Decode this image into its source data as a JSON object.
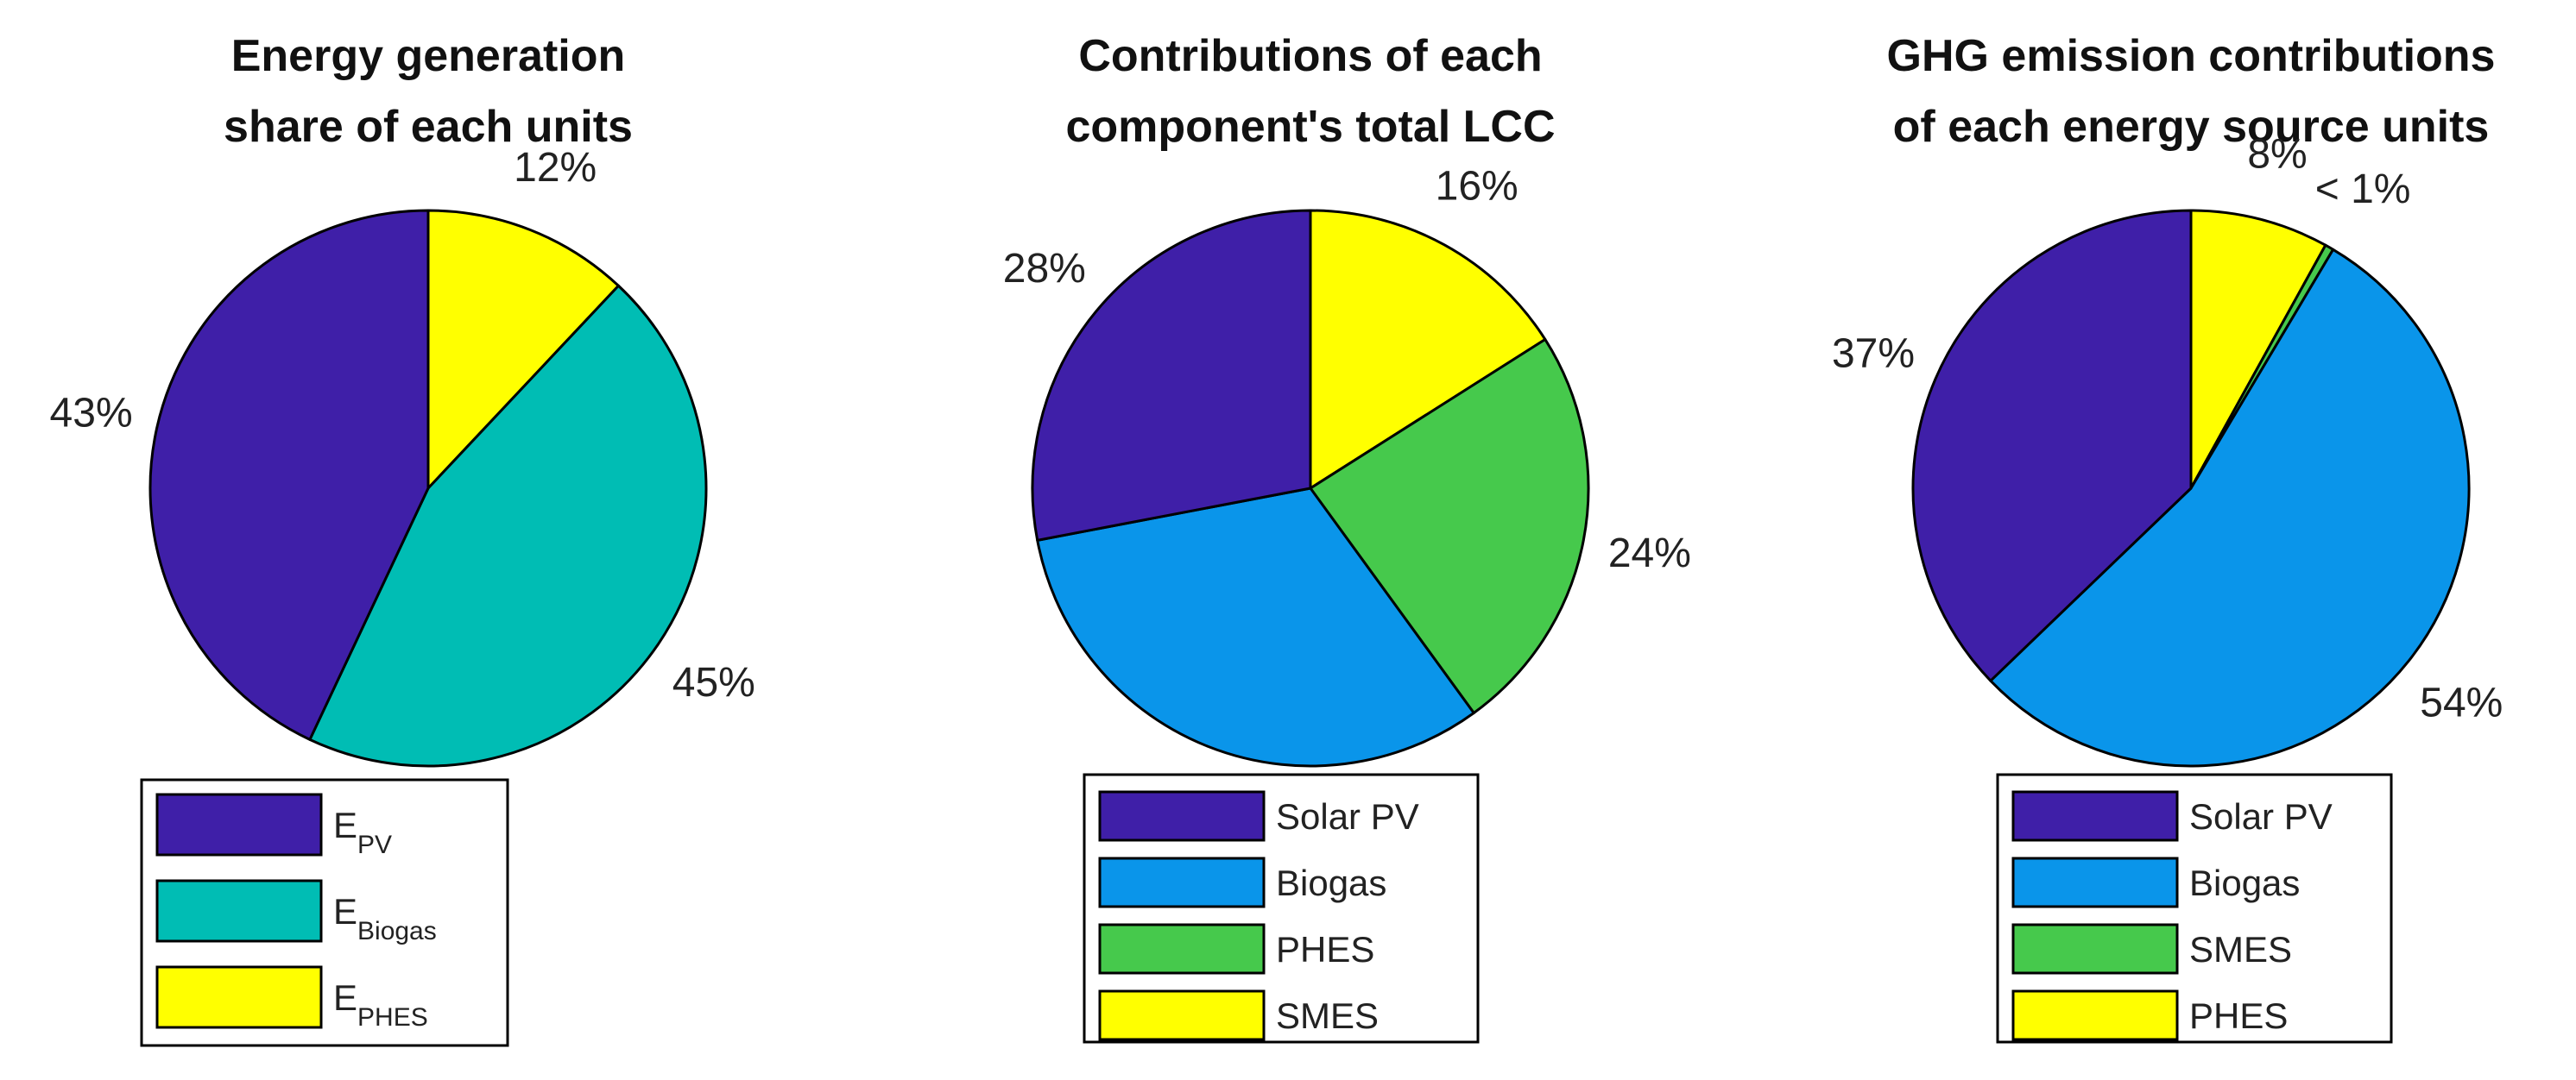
{
  "chart_data": [
    {
      "type": "pie",
      "title": [
        "Energy generation",
        "share of each units"
      ],
      "slices": [
        {
          "label": "E",
          "label_subscript": "PV",
          "value": 43,
          "display": "43%",
          "color": "#3f1fa8"
        },
        {
          "label": "E",
          "label_subscript": "Biogas",
          "value": 45,
          "display": "45%",
          "color": "#00bdb4"
        },
        {
          "label": "E",
          "label_subscript": "PHES",
          "value": 12,
          "display": "12%",
          "color": "#ffff00"
        }
      ],
      "slice_order": [
        2,
        1,
        0
      ],
      "legend": "bottom"
    },
    {
      "type": "pie",
      "title": [
        "Contributions of each",
        "component's total LCC"
      ],
      "slices": [
        {
          "label": "Solar PV",
          "value": 28,
          "display": "28%",
          "color": "#3f1fa8"
        },
        {
          "label": "Biogas",
          "value": 32,
          "display": "32%",
          "color": "#0a95ea"
        },
        {
          "label": "PHES",
          "value": 24,
          "display": "24%",
          "color": "#46c94c"
        },
        {
          "label": "SMES",
          "value": 16,
          "display": "16%",
          "color": "#ffff00"
        }
      ],
      "slice_order": [
        3,
        2,
        1,
        0
      ],
      "legend": "bottom"
    },
    {
      "type": "pie",
      "title": [
        "GHG emission contributions",
        "of each energy source units"
      ],
      "slices": [
        {
          "label": "Solar PV",
          "value": 37,
          "display": "37%",
          "color": "#3f1fa8"
        },
        {
          "label": "Biogas",
          "value": 54,
          "display": "54%",
          "color": "#0a95ea"
        },
        {
          "label": "SMES",
          "value": 0.5,
          "display": "< 1%",
          "color": "#46c94c"
        },
        {
          "label": "PHES",
          "value": 8,
          "display": "8%",
          "color": "#ffff00"
        }
      ],
      "slice_order": [
        3,
        2,
        1,
        0
      ],
      "legend": "bottom"
    }
  ]
}
